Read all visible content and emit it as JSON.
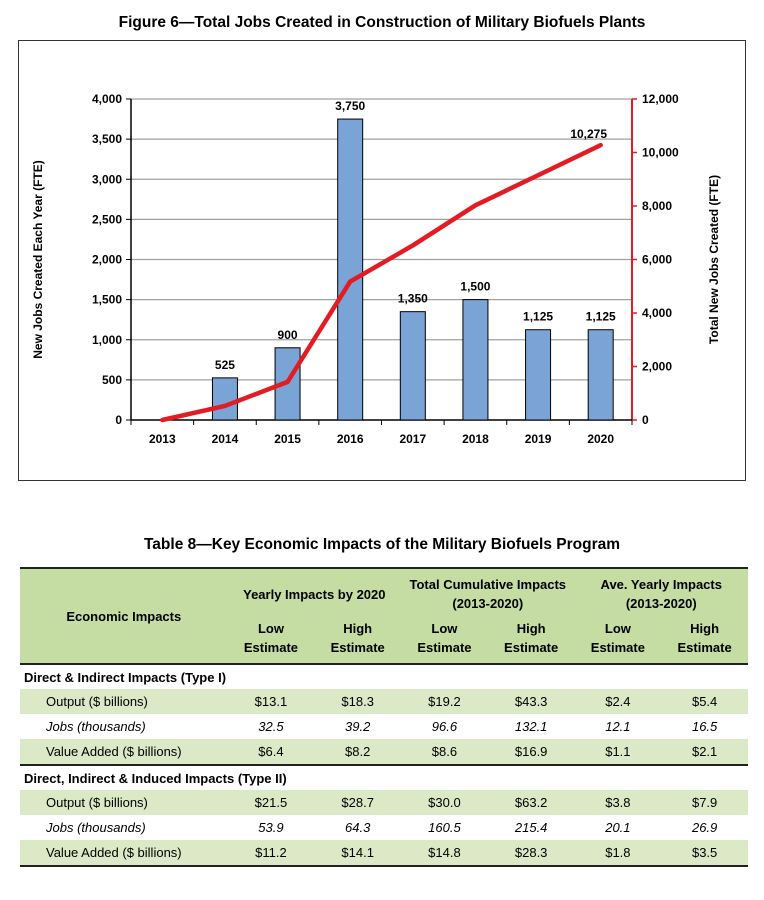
{
  "figure_title": "Figure 6—Total Jobs Created in Construction of Military Biofuels Plants",
  "table_title": "Table 8—Key Economic Impacts of the Military Biofuels Program",
  "chart_data": {
    "type": "bar+line",
    "categories": [
      "2013",
      "2014",
      "2015",
      "2016",
      "2017",
      "2018",
      "2019",
      "2020"
    ],
    "ylabel": "New Jobs Created Each Year (FTE)",
    "ylabel_right": "Total New Jobs Created (FTE)",
    "ylim": [
      0,
      4000
    ],
    "ylim_right": [
      0,
      12000
    ],
    "yticks": [
      "0",
      "500",
      "1,000",
      "1,500",
      "2,000",
      "2,500",
      "3,000",
      "3,500",
      "4,000"
    ],
    "yticks_right": [
      "0",
      "2,000",
      "4,000",
      "6,000",
      "8,000",
      "10,000",
      "12,000"
    ],
    "grid": true,
    "series": [
      {
        "type": "bar",
        "axis": "left",
        "values": [
          0,
          525,
          900,
          3750,
          1350,
          1500,
          1125,
          1125
        ],
        "labels": [
          "",
          "525",
          "900",
          "3,750",
          "1,350",
          "1,500",
          "1,125",
          "1,125"
        ],
        "color": "#7aa3d6"
      },
      {
        "type": "line",
        "axis": "right",
        "values": [
          0,
          525,
          1425,
          5175,
          6525,
          8025,
          9150,
          10275
        ],
        "end_label": "10,275",
        "color": "#e31b23"
      }
    ]
  },
  "table": {
    "corner": "Economic Impacts",
    "groups": [
      "Yearly Impacts by 2020",
      "Total Cumulative Impacts (2013-2020)",
      "Ave. Yearly Impacts (2013-2020)"
    ],
    "sub_low": "Low Estimate",
    "sub_high": "High Estimate",
    "sections": [
      {
        "title": "Direct & Indirect Impacts (Type I)",
        "rows": [
          {
            "label": "Output ($ billions)",
            "values": [
              "$13.1",
              "$18.3",
              "$19.2",
              "$43.3",
              "$2.4",
              "$5.4"
            ],
            "italic": false
          },
          {
            "label": "Jobs (thousands)",
            "values": [
              "32.5",
              "39.2",
              "96.6",
              "132.1",
              "12.1",
              "16.5"
            ],
            "italic": true
          },
          {
            "label": "Value Added ($ billions)",
            "values": [
              "$6.4",
              "$8.2",
              "$8.6",
              "$16.9",
              "$1.1",
              "$2.1"
            ],
            "italic": false
          }
        ]
      },
      {
        "title": "Direct, Indirect & Induced Impacts (Type II)",
        "rows": [
          {
            "label": "Output ($ billions)",
            "values": [
              "$21.5",
              "$28.7",
              "$30.0",
              "$63.2",
              "$3.8",
              "$7.9"
            ],
            "italic": false
          },
          {
            "label": "Jobs (thousands)",
            "values": [
              "53.9",
              "64.3",
              "160.5",
              "215.4",
              "20.1",
              "26.9"
            ],
            "italic": true
          },
          {
            "label": "Value Added ($ billions)",
            "values": [
              "$11.2",
              "$14.1",
              "$14.8",
              "$28.3",
              "$1.8",
              "$3.5"
            ],
            "italic": false
          }
        ]
      }
    ],
    "header_color": "#c5dca3",
    "shade_color": "#dbe9c6"
  }
}
